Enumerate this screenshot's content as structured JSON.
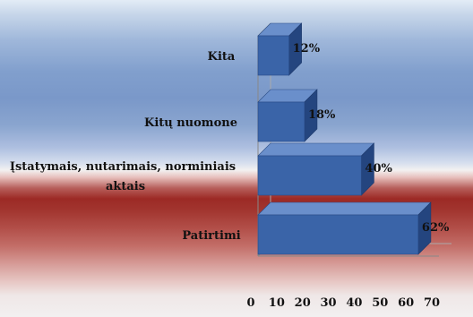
{
  "chart_data": {
    "type": "bar",
    "orientation": "horizontal",
    "style": "3d",
    "categories": [
      [
        "Kita"
      ],
      [
        "Kitų nuomone"
      ],
      [
        "Įstatymais, nutarimais, norminiais",
        "aktais"
      ],
      [
        "Patirtimi"
      ]
    ],
    "values": [
      12,
      18,
      40,
      62
    ],
    "data_labels": [
      "12%",
      "18%",
      "40%",
      "62%"
    ],
    "xticks": [
      "0",
      "10",
      "20",
      "30",
      "40",
      "50",
      "60",
      "70"
    ],
    "xlim": [
      0,
      70
    ],
    "bar_color": "#3a64a8",
    "bar_top_color": "#6a8fcb",
    "bar_side_color": "#24457f"
  }
}
